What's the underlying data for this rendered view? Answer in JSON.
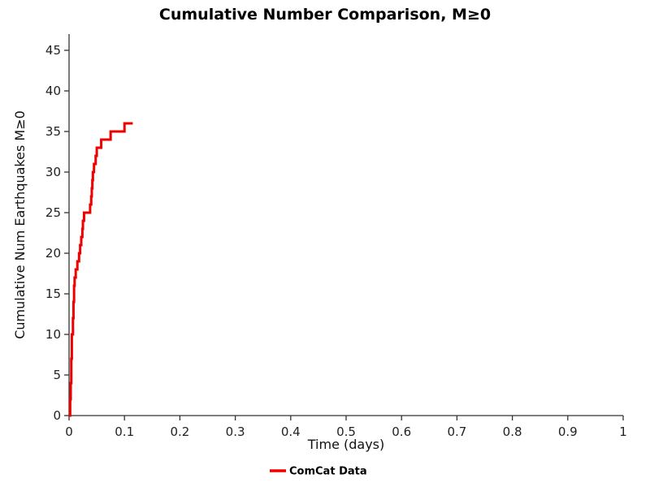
{
  "chart_data": {
    "type": "line",
    "title": "Cumulative Number Comparison, M≥0",
    "xlabel": "Time (days)",
    "ylabel": "Cumulative Num Earthquakes M≥0",
    "xlim": [
      0,
      1
    ],
    "ylim": [
      0,
      47
    ],
    "xticks": [
      0,
      0.1,
      0.2,
      0.3,
      0.4,
      0.5,
      0.6,
      0.7,
      0.8,
      0.9,
      1
    ],
    "xtick_labels": [
      "0",
      "0.1",
      "0.2",
      "0.3",
      "0.4",
      "0.5",
      "0.6",
      "0.7",
      "0.8",
      "0.9",
      "1"
    ],
    "yticks": [
      0,
      5,
      10,
      15,
      20,
      25,
      30,
      35,
      40,
      45
    ],
    "ytick_labels": [
      "0",
      "5",
      "10",
      "15",
      "20",
      "25",
      "30",
      "35",
      "40",
      "45"
    ],
    "grid": false,
    "legend_position": "bottom-center",
    "axis_color": "#333333",
    "series": [
      {
        "name": "ComCat Data",
        "color": "#ee0000",
        "step": "post",
        "points": [
          [
            0,
            0
          ],
          [
            0.002,
            2
          ],
          [
            0.003,
            4
          ],
          [
            0.004,
            7
          ],
          [
            0.005,
            10
          ],
          [
            0.007,
            12
          ],
          [
            0.008,
            14
          ],
          [
            0.009,
            16
          ],
          [
            0.01,
            17
          ],
          [
            0.012,
            18
          ],
          [
            0.015,
            19
          ],
          [
            0.018,
            20
          ],
          [
            0.02,
            21
          ],
          [
            0.022,
            22
          ],
          [
            0.024,
            23
          ],
          [
            0.025,
            24
          ],
          [
            0.027,
            25
          ],
          [
            0.038,
            26
          ],
          [
            0.04,
            27
          ],
          [
            0.041,
            28
          ],
          [
            0.042,
            29
          ],
          [
            0.043,
            30
          ],
          [
            0.045,
            31
          ],
          [
            0.048,
            32
          ],
          [
            0.05,
            33
          ],
          [
            0.058,
            34
          ],
          [
            0.075,
            35
          ],
          [
            0.1,
            36
          ],
          [
            0.115,
            36
          ]
        ]
      }
    ]
  }
}
